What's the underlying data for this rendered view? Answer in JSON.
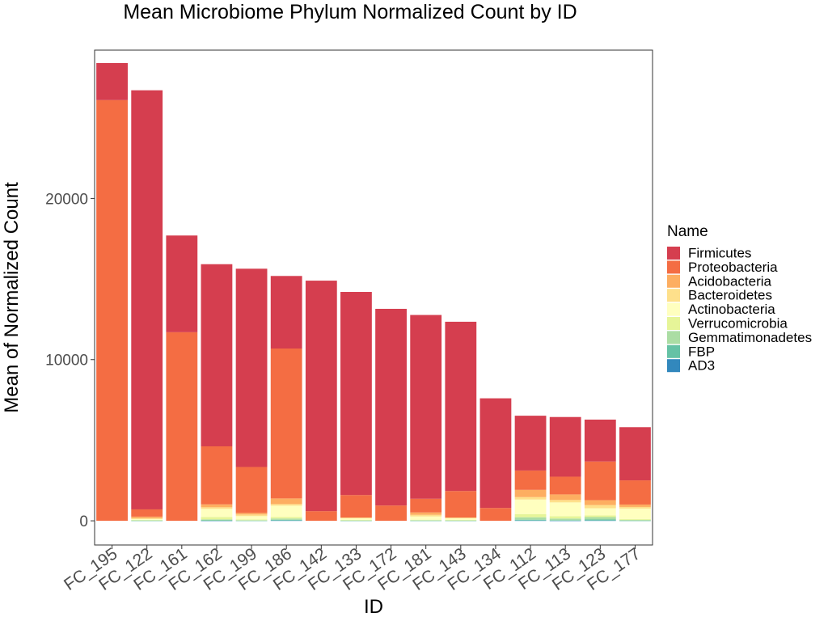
{
  "chart_data": {
    "type": "bar",
    "stacked": true,
    "title": "Mean Microbiome Phylum Normalized Count by ID",
    "xlabel": "ID",
    "ylabel": "Mean of Normalized Count",
    "ylim": [
      -1500,
      29200
    ],
    "yticks": [
      0,
      10000,
      20000
    ],
    "ytick_labels": [
      "0",
      "10000",
      "20000"
    ],
    "grid": false,
    "legend": {
      "title": "Name",
      "position": "right"
    },
    "categories": [
      "FC_195",
      "FC_122",
      "FC_161",
      "FC_162",
      "FC_199",
      "FC_186",
      "FC_142",
      "FC_133",
      "FC_172",
      "FC_181",
      "FC_143",
      "FC_134",
      "FC_112",
      "FC_113",
      "FC_123",
      "FC_177"
    ],
    "series": [
      {
        "name": "Firmicutes",
        "color": "#d53e4f",
        "values": [
          2300,
          26000,
          6000,
          11300,
          12300,
          4500,
          14300,
          12600,
          12200,
          11400,
          10500,
          6800,
          3400,
          3700,
          2600,
          3300
        ]
      },
      {
        "name": "Proteobacteria",
        "color": "#f46d43",
        "values": [
          26100,
          450,
          11700,
          3600,
          2850,
          9300,
          600,
          1400,
          950,
          850,
          1650,
          800,
          1200,
          1100,
          2400,
          1500
        ]
      },
      {
        "name": "Acidobacteria",
        "color": "#fdae61",
        "values": [
          0,
          100,
          0,
          180,
          100,
          350,
          0,
          0,
          0,
          150,
          0,
          0,
          450,
          350,
          300,
          150
        ]
      },
      {
        "name": "Bacteroidetes",
        "color": "#fee08b",
        "values": [
          0,
          50,
          0,
          100,
          100,
          100,
          0,
          50,
          0,
          100,
          50,
          0,
          150,
          150,
          200,
          100
        ]
      },
      {
        "name": "Actinobacteria",
        "color": "#ffffbf",
        "values": [
          0,
          50,
          0,
          500,
          200,
          700,
          0,
          100,
          0,
          200,
          100,
          0,
          900,
          850,
          450,
          650
        ]
      },
      {
        "name": "Verrucomicrobia",
        "color": "#e6f598",
        "values": [
          0,
          20,
          0,
          150,
          50,
          100,
          0,
          20,
          0,
          30,
          20,
          0,
          200,
          150,
          100,
          50
        ]
      },
      {
        "name": "Gemmatimonadetes",
        "color": "#abdda4",
        "values": [
          0,
          30,
          0,
          60,
          30,
          80,
          0,
          20,
          0,
          30,
          20,
          0,
          150,
          100,
          150,
          50
        ]
      },
      {
        "name": "FBP",
        "color": "#66c2a5",
        "values": [
          0,
          10,
          0,
          20,
          10,
          40,
          0,
          10,
          0,
          10,
          10,
          0,
          50,
          30,
          60,
          10
        ]
      },
      {
        "name": "AD3",
        "color": "#3288bd",
        "values": [
          0,
          0,
          0,
          10,
          0,
          20,
          0,
          0,
          0,
          0,
          0,
          0,
          20,
          10,
          20,
          0
        ]
      }
    ]
  }
}
